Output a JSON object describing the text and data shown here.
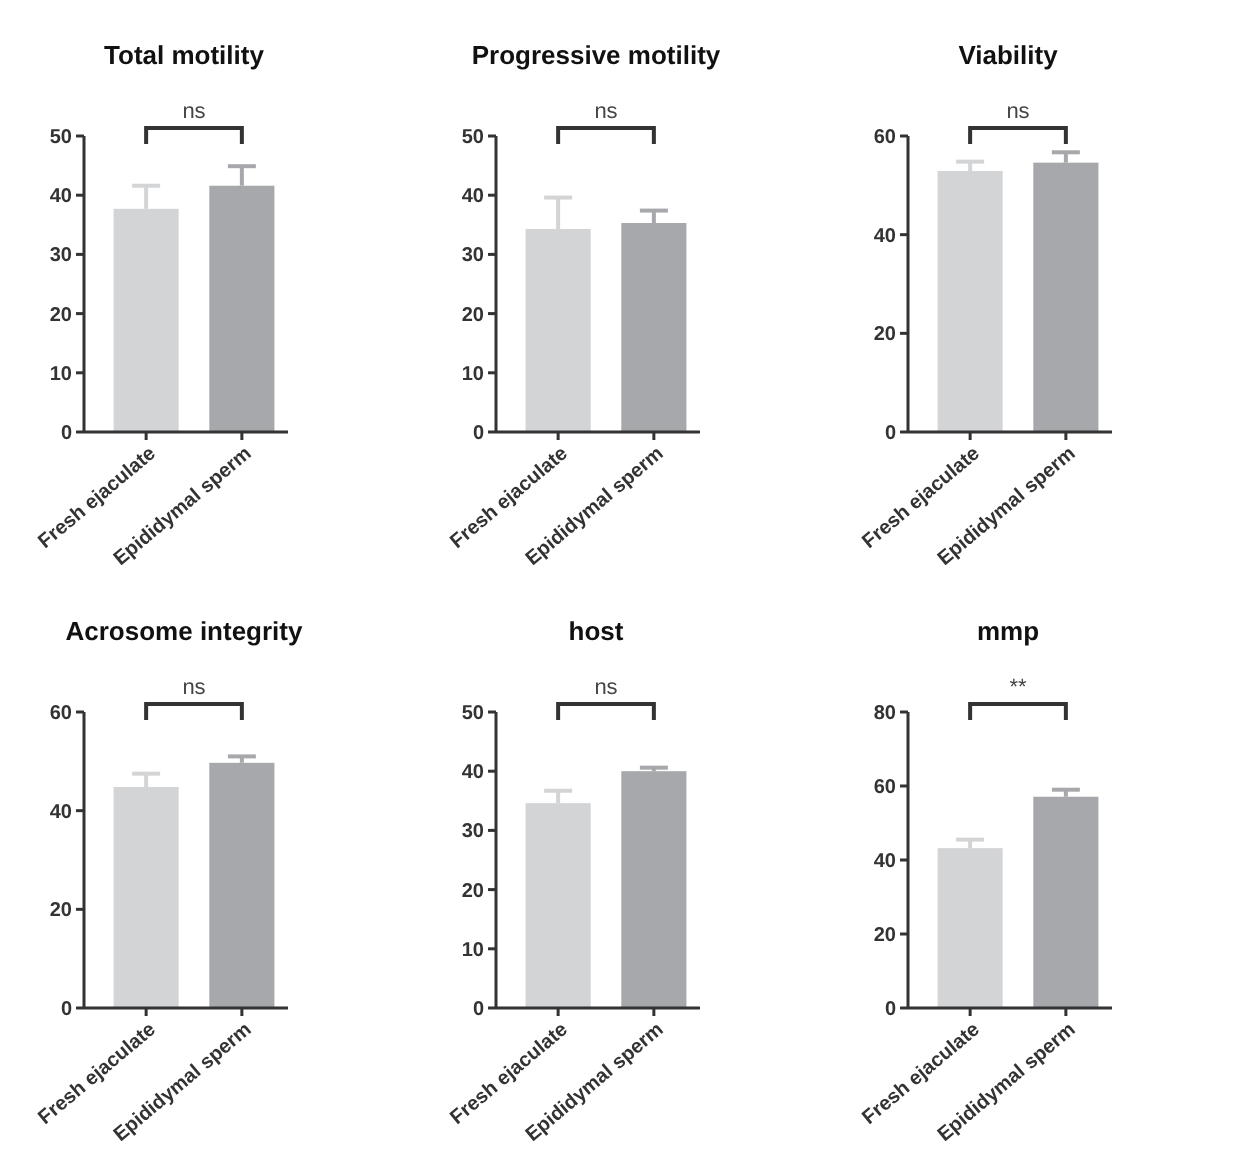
{
  "chart_data": [
    {
      "type": "bar",
      "title": "Total motility",
      "categories": [
        "Fresh ejaculate",
        "Epididymal sperm"
      ],
      "values": [
        37.7,
        41.6
      ],
      "colors": [
        "#d3d4d6",
        "#a7a8ab"
      ],
      "errors": [
        [
          37.7,
          41.6
        ],
        [
          41.6,
          44.9
        ]
      ],
      "ylim": [
        0,
        50
      ],
      "yticks": [
        0,
        10,
        20,
        30,
        40,
        50
      ],
      "annotations": [
        "ns"
      ]
    },
    {
      "type": "bar",
      "title": "Progressive motility",
      "categories": [
        "Fresh ejaculate",
        "Epididymal sperm"
      ],
      "values": [
        34.3,
        35.3
      ],
      "colors": [
        "#d3d4d6",
        "#a7a8ab"
      ],
      "errors": [
        [
          34.3,
          39.6
        ],
        [
          35.3,
          37.4
        ]
      ],
      "ylim": [
        0,
        50
      ],
      "yticks": [
        0,
        10,
        20,
        30,
        40,
        50
      ],
      "annotations": [
        "ns"
      ]
    },
    {
      "type": "bar",
      "title": "Viability",
      "categories": [
        "Fresh ejaculate",
        "Epididymal sperm"
      ],
      "values": [
        52.9,
        54.6
      ],
      "colors": [
        "#d3d4d6",
        "#a7a8ab"
      ],
      "errors": [
        [
          52.9,
          54.8
        ],
        [
          54.6,
          56.7
        ]
      ],
      "ylim": [
        0,
        60
      ],
      "yticks": [
        0,
        20,
        40,
        60
      ],
      "annotations": [
        "ns"
      ]
    },
    {
      "type": "bar",
      "title": "Acrosome integrity",
      "categories": [
        "Fresh ejaculate",
        "Epididymal sperm"
      ],
      "values": [
        44.8,
        49.7
      ],
      "colors": [
        "#d3d4d6",
        "#a7a8ab"
      ],
      "errors": [
        [
          44.8,
          47.5
        ],
        [
          49.7,
          51
        ]
      ],
      "ylim": [
        0,
        60
      ],
      "yticks": [
        0,
        20,
        40,
        60
      ],
      "annotations": [
        "ns"
      ]
    },
    {
      "type": "bar",
      "title": "host",
      "categories": [
        "Fresh ejaculate",
        "Epididymal sperm"
      ],
      "values": [
        34.6,
        40
      ],
      "colors": [
        "#d3d4d6",
        "#a7a8ab"
      ],
      "errors": [
        [
          34.6,
          36.7
        ],
        [
          40,
          40.6
        ]
      ],
      "ylim": [
        0,
        50
      ],
      "yticks": [
        0,
        10,
        20,
        30,
        40,
        50
      ],
      "annotations": [
        "ns"
      ]
    },
    {
      "type": "bar",
      "title": "mmp",
      "categories": [
        "Fresh ejaculate",
        "Epididymal sperm"
      ],
      "values": [
        43.2,
        57.1
      ],
      "colors": [
        "#d3d4d6",
        "#a7a8ab"
      ],
      "errors": [
        [
          43.2,
          45.5
        ],
        [
          57.1,
          59
        ]
      ],
      "ylim": [
        0,
        80
      ],
      "yticks": [
        0,
        20,
        40,
        60,
        80
      ],
      "annotations": [
        "**"
      ]
    }
  ]
}
